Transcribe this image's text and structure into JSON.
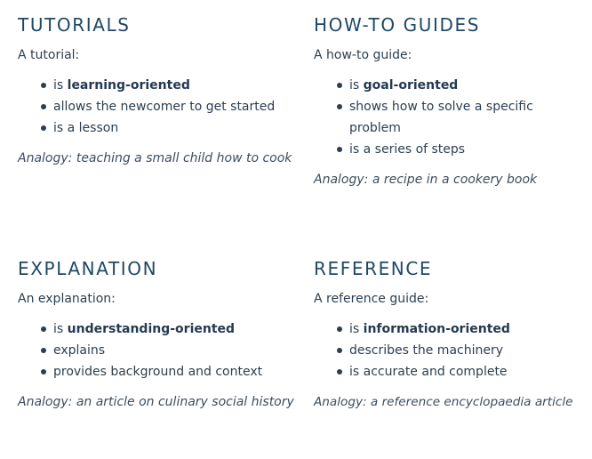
{
  "tutorials": {
    "title": "TUTORIALS",
    "intro": "A tutorial:",
    "bullets": [
      {
        "prefix": "is ",
        "bold": "learning-oriented"
      },
      {
        "text": "allows the newcomer to get started"
      },
      {
        "text": "is a lesson"
      }
    ],
    "analogy": "Analogy: teaching a small child how to cook"
  },
  "howto": {
    "title": "HOW-TO GUIDES",
    "intro": "A how-to guide:",
    "bullets": [
      {
        "prefix": "is ",
        "bold": "goal-oriented"
      },
      {
        "text": "shows how to solve a specific problem"
      },
      {
        "text": "is a series of steps"
      }
    ],
    "analogy": "Analogy: a recipe in a cookery book"
  },
  "explanation": {
    "title": "EXPLANATION",
    "intro": "An explanation:",
    "bullets": [
      {
        "prefix": "is ",
        "bold": "understanding-oriented"
      },
      {
        "text": "explains"
      },
      {
        "text": "provides background and context"
      }
    ],
    "analogy": "Analogy: an article on culinary social history"
  },
  "reference": {
    "title": "REFERENCE",
    "intro": "A reference guide:",
    "bullets": [
      {
        "prefix": "is ",
        "bold": "information-oriented"
      },
      {
        "text": "describes the machinery"
      },
      {
        "text": "is accurate and complete"
      }
    ],
    "analogy": "Analogy: a reference encyclopaedia article"
  }
}
